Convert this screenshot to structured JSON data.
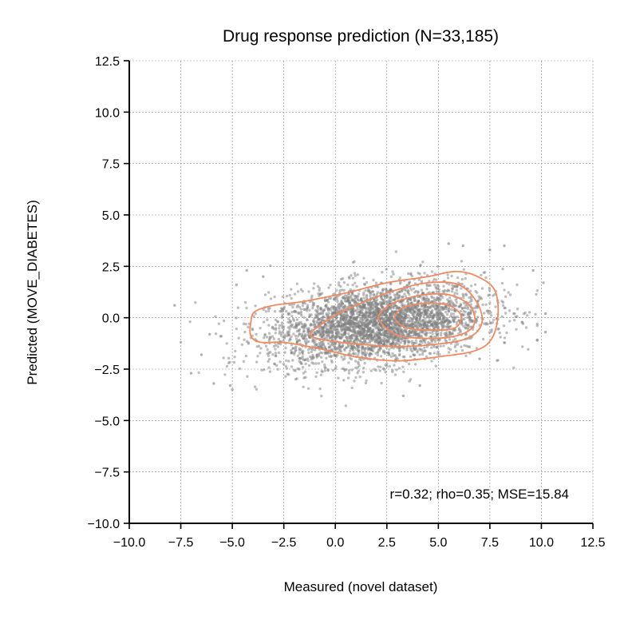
{
  "chart_data": {
    "type": "scatter",
    "title": "Drug response prediction (N=33,185)",
    "xlabel": "Measured (novel dataset)",
    "ylabel": "Predicted (MOVE_DIABETES)",
    "xlim": [
      -10.0,
      12.5
    ],
    "ylim": [
      -10.0,
      12.5
    ],
    "xticks": [
      -10.0,
      -7.5,
      -5.0,
      -2.5,
      0.0,
      2.5,
      5.0,
      7.5,
      10.0,
      12.5
    ],
    "yticks": [
      -10.0,
      -7.5,
      -5.0,
      -2.5,
      0.0,
      2.5,
      5.0,
      7.5,
      10.0,
      12.5
    ],
    "xtick_labels": [
      "−10.0",
      "−7.5",
      "−5.0",
      "−2.5",
      "0.0",
      "2.5",
      "5.0",
      "7.5",
      "10.0",
      "12.5"
    ],
    "ytick_labels": [
      "−10.0",
      "−7.5",
      "−5.0",
      "−2.5",
      "0.0",
      "2.5",
      "5.0",
      "7.5",
      "10.0",
      "12.5"
    ],
    "grid": true,
    "annotation": "r=0.32; rho=0.35; MSE=15.84",
    "point_color": "#7f7f7f",
    "contour_color": "#f08a60",
    "outlier_points": [
      {
        "x": -7.8,
        "y": 0.6
      },
      {
        "x": -7.0,
        "y": -2.7
      },
      {
        "x": -6.5,
        "y": -1.8
      },
      {
        "x": -5.9,
        "y": -3.2
      },
      {
        "x": -5.0,
        "y": -3.5
      },
      {
        "x": -5.1,
        "y": -3.3
      },
      {
        "x": -6.1,
        "y": -0.8
      },
      {
        "x": -4.8,
        "y": 1.6
      },
      {
        "x": -4.3,
        "y": 2.3
      },
      {
        "x": 3.3,
        "y": -3.8
      },
      {
        "x": 4.1,
        "y": -3.3
      },
      {
        "x": 7.5,
        "y": 3.3
      },
      {
        "x": 8.2,
        "y": 3.5
      },
      {
        "x": 9.6,
        "y": 2.3
      },
      {
        "x": 10.1,
        "y": 1.7
      },
      {
        "x": 10.2,
        "y": 0.2
      },
      {
        "x": 10.2,
        "y": -0.7
      },
      {
        "x": 9.8,
        "y": -1.1
      },
      {
        "x": 7.0,
        "y": -2.0
      },
      {
        "x": -3.5,
        "y": 2.0
      },
      {
        "x": 5.5,
        "y": 3.6
      },
      {
        "x": 6.2,
        "y": 3.5
      }
    ],
    "density_contours": [
      [
        [
          -4.1,
          -0.9
        ],
        [
          -4.1,
          -0.2
        ],
        [
          -3.9,
          0.3
        ],
        [
          -3.0,
          0.6
        ],
        [
          -1.5,
          0.8
        ],
        [
          0.5,
          1.2
        ],
        [
          2.5,
          1.7
        ],
        [
          4.5,
          2.0
        ],
        [
          5.8,
          2.25
        ],
        [
          6.8,
          2.05
        ],
        [
          7.7,
          1.4
        ],
        [
          7.9,
          0.2
        ],
        [
          7.6,
          -1.0
        ],
        [
          6.8,
          -1.6
        ],
        [
          5.0,
          -1.9
        ],
        [
          3.0,
          -2.1
        ],
        [
          1.0,
          -1.9
        ],
        [
          -0.8,
          -1.5
        ],
        [
          -2.5,
          -1.2
        ],
        [
          -3.6,
          -1.2
        ]
      ],
      [
        [
          -1.2,
          -0.8
        ],
        [
          -0.2,
          0.0
        ],
        [
          1.0,
          0.6
        ],
        [
          2.8,
          1.3
        ],
        [
          4.5,
          1.7
        ],
        [
          6.0,
          1.6
        ],
        [
          6.9,
          0.7
        ],
        [
          7.1,
          -0.3
        ],
        [
          6.4,
          -1.0
        ],
        [
          4.8,
          -1.3
        ],
        [
          3.0,
          -1.4
        ],
        [
          1.3,
          -1.3
        ],
        [
          -0.4,
          -1.1
        ]
      ],
      [
        [
          2.1,
          0.0
        ],
        [
          2.8,
          0.7
        ],
        [
          4.2,
          1.1
        ],
        [
          5.6,
          1.1
        ],
        [
          6.6,
          0.5
        ],
        [
          6.7,
          -0.4
        ],
        [
          5.8,
          -0.9
        ],
        [
          4.2,
          -1.0
        ],
        [
          2.9,
          -0.8
        ]
      ],
      [
        [
          2.9,
          0.1
        ],
        [
          3.3,
          0.5
        ],
        [
          4.4,
          0.7
        ],
        [
          5.5,
          0.6
        ],
        [
          6.1,
          0.1
        ],
        [
          5.8,
          -0.5
        ],
        [
          4.6,
          -0.6
        ],
        [
          3.5,
          -0.5
        ],
        [
          3.0,
          -0.2
        ]
      ]
    ]
  }
}
